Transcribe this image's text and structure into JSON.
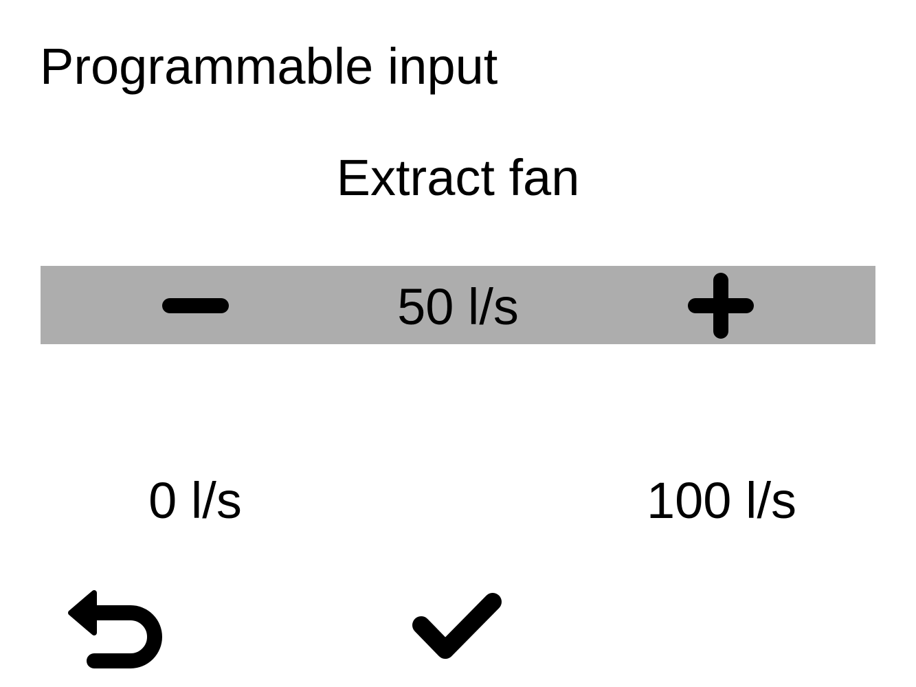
{
  "header": {
    "title": "Programmable input"
  },
  "setting": {
    "name": "Extract fan"
  },
  "stepper": {
    "value": "50 l/s",
    "decrement_icon": "minus-icon",
    "increment_icon": "plus-icon",
    "background": "#adadad"
  },
  "range": {
    "min": "0 l/s",
    "max": "100 l/s"
  },
  "footer": {
    "back_icon": "back-arrow-icon",
    "confirm_icon": "checkmark-icon"
  }
}
